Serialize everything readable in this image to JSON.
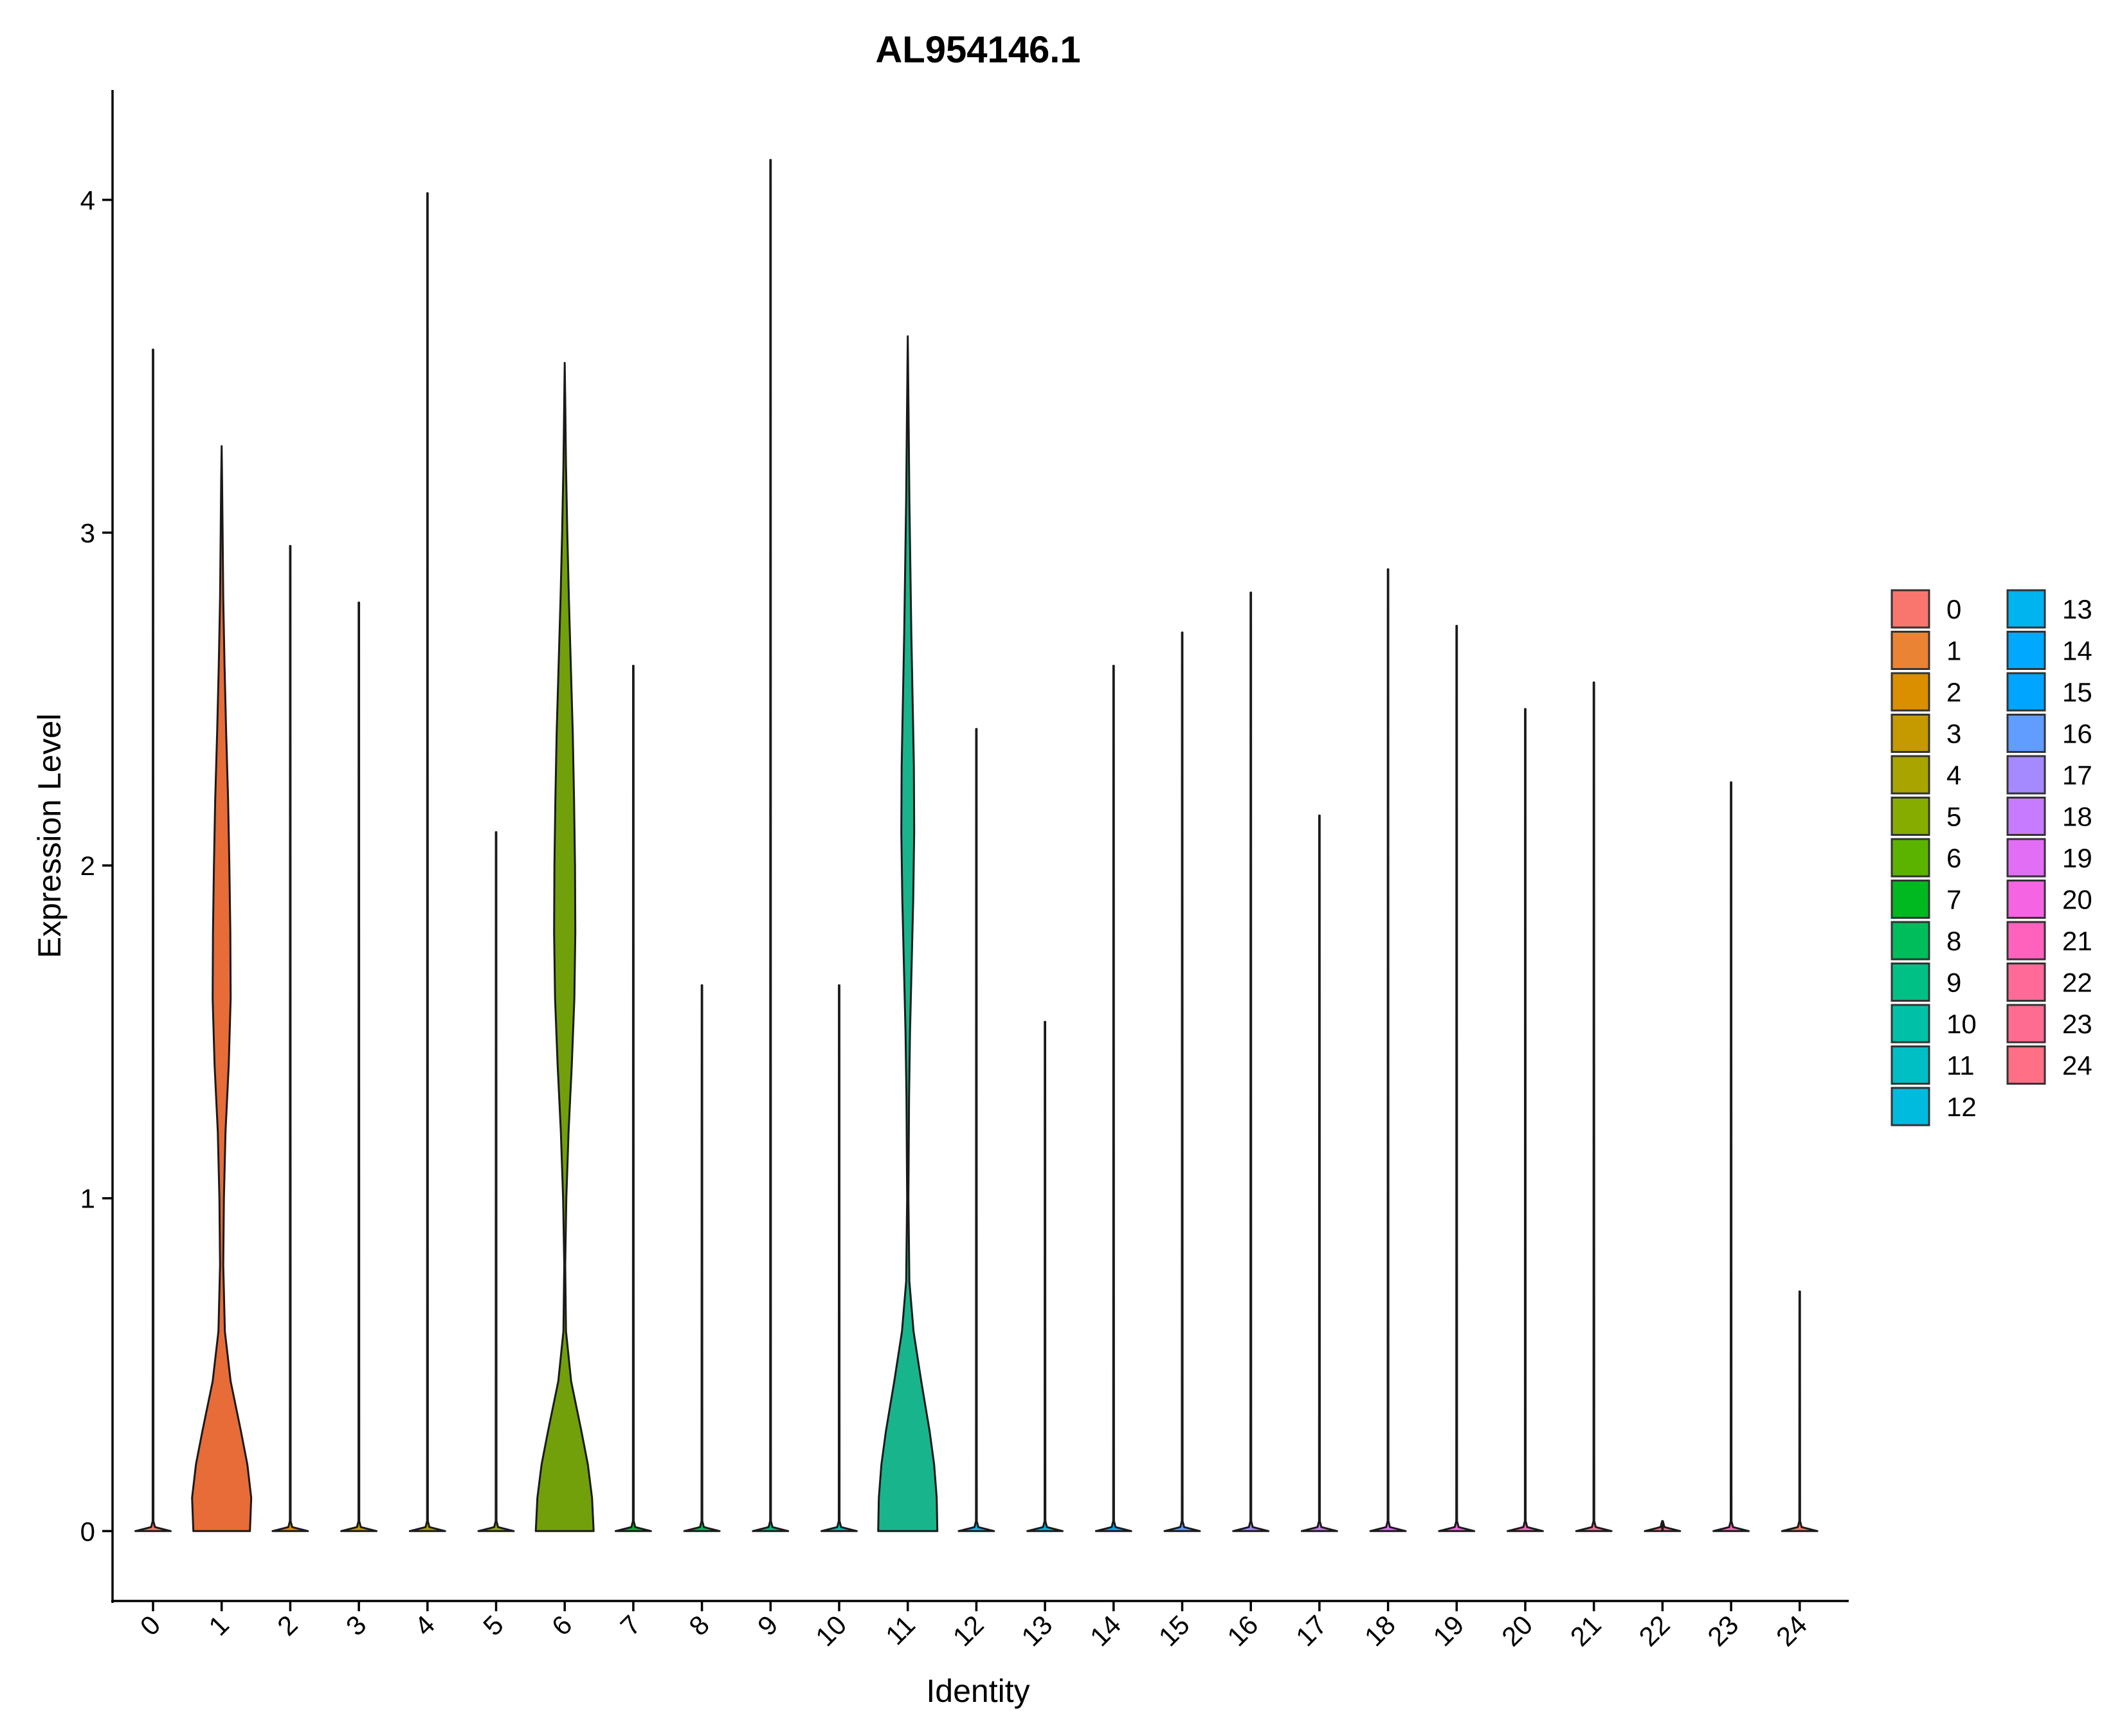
{
  "chart_data": {
    "type": "violin",
    "title": "AL954146.1",
    "xlabel": "Identity",
    "ylabel": "Expression Level",
    "ylim": [
      -0.21,
      4.33
    ],
    "yticks": [
      0,
      1,
      2,
      3,
      4
    ],
    "ytick_labels": [
      "0",
      "1",
      "2",
      "3",
      "4"
    ],
    "grid": false,
    "legend_position": "right",
    "categories": [
      "0",
      "1",
      "2",
      "3",
      "4",
      "5",
      "6",
      "7",
      "8",
      "9",
      "10",
      "11",
      "12",
      "13",
      "14",
      "15",
      "16",
      "17",
      "18",
      "19",
      "20",
      "21",
      "22",
      "23",
      "24"
    ],
    "colors": [
      "#F8766D",
      "#EB8335",
      "#DA8F00",
      "#C49A00",
      "#A9A400",
      "#87AC00",
      "#5BB300",
      "#00B81F",
      "#00BD5C",
      "#00C085",
      "#00C1A7",
      "#00BFC4",
      "#00BBDD",
      "#00B4F0",
      "#00A9FF",
      "#619CFF",
      "#A58AFF",
      "#C77CFF",
      "#E36EF6",
      "#F564E3",
      "#FF62BC",
      "#FF6A98",
      "#FF6C91",
      "#FF63B6",
      "#F8766D"
    ],
    "legend_colors": [
      "#F8766D",
      "#EB8335",
      "#DA8F00",
      "#C49A00",
      "#A9A400",
      "#87AC00",
      "#5BB300",
      "#00B81F",
      "#00BD5C",
      "#00C085",
      "#00C1A7",
      "#00BFC4",
      "#00BBDD",
      "#00B4F0",
      "#00A9FF",
      "#00A5FF",
      "#619CFF",
      "#A58AFF",
      "#C77CFF",
      "#E36EF6",
      "#F564E3",
      "#FF62BC",
      "#FF6A98",
      "#FF6C91",
      "#FF6F86"
    ],
    "max_values": [
      3.55,
      3.26,
      2.96,
      2.79,
      4.02,
      2.1,
      3.51,
      2.6,
      1.64,
      4.12,
      1.64,
      3.59,
      2.41,
      1.53,
      2.6,
      2.7,
      2.82,
      2.15,
      2.89,
      2.72,
      2.47,
      2.55,
      0.0,
      2.25,
      0.72
    ],
    "violins": [
      {
        "category": "1",
        "fill": "#E86C38",
        "profile": [
          [
            0.0,
            0.88
          ],
          [
            0.1,
            0.92
          ],
          [
            0.2,
            0.8
          ],
          [
            0.3,
            0.6
          ],
          [
            0.45,
            0.28
          ],
          [
            0.6,
            0.1
          ],
          [
            0.8,
            0.05
          ],
          [
            1.0,
            0.07
          ],
          [
            1.2,
            0.12
          ],
          [
            1.4,
            0.22
          ],
          [
            1.6,
            0.28
          ],
          [
            1.8,
            0.27
          ],
          [
            2.0,
            0.24
          ],
          [
            2.2,
            0.2
          ],
          [
            2.4,
            0.14
          ],
          [
            2.6,
            0.09
          ],
          [
            2.8,
            0.05
          ],
          [
            3.0,
            0.03
          ],
          [
            3.15,
            0.015
          ],
          [
            3.26,
            0.0
          ]
        ]
      },
      {
        "category": "6",
        "fill": "#72A00A",
        "profile": [
          [
            0.0,
            0.9
          ],
          [
            0.1,
            0.85
          ],
          [
            0.2,
            0.72
          ],
          [
            0.3,
            0.52
          ],
          [
            0.45,
            0.2
          ],
          [
            0.6,
            0.04
          ],
          [
            0.8,
            0.015
          ],
          [
            1.0,
            0.05
          ],
          [
            1.2,
            0.12
          ],
          [
            1.4,
            0.22
          ],
          [
            1.6,
            0.3
          ],
          [
            1.8,
            0.33
          ],
          [
            2.0,
            0.32
          ],
          [
            2.2,
            0.29
          ],
          [
            2.4,
            0.25
          ],
          [
            2.6,
            0.19
          ],
          [
            2.8,
            0.13
          ],
          [
            3.0,
            0.08
          ],
          [
            3.2,
            0.04
          ],
          [
            3.4,
            0.015
          ],
          [
            3.51,
            0.0
          ]
        ]
      },
      {
        "category": "11",
        "fill": "#18B58C",
        "profile": [
          [
            0.0,
            0.92
          ],
          [
            0.1,
            0.9
          ],
          [
            0.2,
            0.82
          ],
          [
            0.3,
            0.68
          ],
          [
            0.45,
            0.42
          ],
          [
            0.6,
            0.18
          ],
          [
            0.75,
            0.05
          ],
          [
            1.0,
            0.02
          ],
          [
            1.3,
            0.04
          ],
          [
            1.5,
            0.07
          ],
          [
            1.7,
            0.12
          ],
          [
            1.9,
            0.17
          ],
          [
            2.1,
            0.2
          ],
          [
            2.3,
            0.19
          ],
          [
            2.5,
            0.15
          ],
          [
            2.7,
            0.11
          ],
          [
            2.9,
            0.08
          ],
          [
            3.1,
            0.05
          ],
          [
            3.3,
            0.03
          ],
          [
            3.5,
            0.01
          ],
          [
            3.59,
            0.0
          ]
        ]
      }
    ]
  }
}
